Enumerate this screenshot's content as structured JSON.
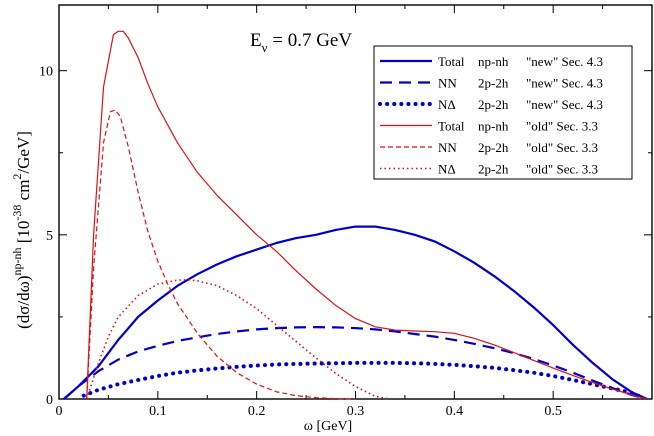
{
  "chart_data": {
    "type": "line",
    "title": "E",
    "title_sub": "ν",
    "title_rest": " = 0.7 GeV",
    "xlabel": "ω [GeV]",
    "ylabel_parts": {
      "main": "(dσ/dω)",
      "sup": "np-nh",
      "bracket_open": " [10",
      "exp": "-38",
      "unit": " cm",
      "unit_exp": "2",
      "tail": "/GeV]"
    },
    "xlim": [
      0,
      0.6
    ],
    "ylim": [
      0,
      12
    ],
    "xticks": [
      0,
      0.1,
      0.2,
      0.3,
      0.4,
      0.5
    ],
    "xtick_labels": [
      "0",
      "0.1",
      "0.2",
      "0.3",
      "0.4",
      "0.5"
    ],
    "yticks": [
      0,
      5,
      10
    ],
    "ytick_labels": [
      "0",
      "5",
      "10"
    ],
    "legend_position": "top-right",
    "series": [
      {
        "name": "Total np-nh \"new\" Sec. 4.3",
        "label_a": "Total",
        "label_b": "np-nh",
        "label_c": "\"new\" Sec. 4.3",
        "color": "#0000cc",
        "style": "solid",
        "width": 2.2,
        "x": [
          0.005,
          0.02,
          0.04,
          0.06,
          0.08,
          0.1,
          0.12,
          0.14,
          0.16,
          0.18,
          0.2,
          0.22,
          0.24,
          0.26,
          0.28,
          0.3,
          0.32,
          0.34,
          0.36,
          0.38,
          0.4,
          0.42,
          0.44,
          0.46,
          0.48,
          0.5,
          0.52,
          0.54,
          0.56,
          0.58,
          0.595
        ],
        "y": [
          0.0,
          0.4,
          1.0,
          1.8,
          2.5,
          3.0,
          3.45,
          3.8,
          4.1,
          4.35,
          4.55,
          4.75,
          4.9,
          5.0,
          5.15,
          5.25,
          5.25,
          5.15,
          5.0,
          4.8,
          4.5,
          4.15,
          3.75,
          3.3,
          2.8,
          2.25,
          1.65,
          1.1,
          0.6,
          0.2,
          0.0
        ]
      },
      {
        "name": "NN 2p-2h \"new\" Sec. 4.3",
        "label_a": "NN",
        "label_b": "2p-2h",
        "label_c": "\"new\" Sec. 4.3",
        "color": "#0000cc",
        "style": "dashed",
        "width": 2.2,
        "x": [
          0.005,
          0.02,
          0.04,
          0.06,
          0.08,
          0.1,
          0.12,
          0.14,
          0.16,
          0.18,
          0.2,
          0.22,
          0.24,
          0.26,
          0.28,
          0.3,
          0.32,
          0.34,
          0.36,
          0.38,
          0.4,
          0.42,
          0.44,
          0.46,
          0.48,
          0.5,
          0.52,
          0.54,
          0.56,
          0.58,
          0.595
        ],
        "y": [
          0.0,
          0.4,
          0.85,
          1.2,
          1.45,
          1.62,
          1.77,
          1.88,
          1.98,
          2.06,
          2.12,
          2.16,
          2.18,
          2.19,
          2.18,
          2.16,
          2.12,
          2.06,
          1.98,
          1.9,
          1.8,
          1.68,
          1.55,
          1.4,
          1.22,
          1.02,
          0.8,
          0.56,
          0.33,
          0.12,
          0.0
        ]
      },
      {
        "name": "NΔ 2p-2h \"new\" Sec. 4.3",
        "label_a": "NΔ",
        "label_b": "2p-2h",
        "label_c": "\"new\" Sec. 4.3",
        "color": "#0000cc",
        "style": "dotted",
        "width": 4,
        "x": [
          0.025,
          0.04,
          0.06,
          0.08,
          0.1,
          0.12,
          0.14,
          0.16,
          0.18,
          0.2,
          0.22,
          0.24,
          0.26,
          0.28,
          0.3,
          0.32,
          0.34,
          0.36,
          0.38,
          0.4,
          0.42,
          0.44,
          0.46,
          0.48,
          0.5,
          0.52,
          0.54,
          0.56,
          0.58,
          0.59
        ],
        "y": [
          0.1,
          0.28,
          0.45,
          0.58,
          0.7,
          0.8,
          0.87,
          0.93,
          0.98,
          1.02,
          1.05,
          1.07,
          1.08,
          1.09,
          1.1,
          1.1,
          1.1,
          1.09,
          1.07,
          1.04,
          1.0,
          0.95,
          0.88,
          0.8,
          0.7,
          0.58,
          0.45,
          0.32,
          0.18,
          0.05
        ]
      },
      {
        "name": "Total np-nh \"old\" Sec. 3.3",
        "label_a": "Total",
        "label_b": "np-nh",
        "label_c": "\"old\" Sec. 3.3",
        "color": "#dd1111",
        "style": "solid",
        "width": 1.2,
        "x": [
          0.028,
          0.035,
          0.045,
          0.055,
          0.06,
          0.065,
          0.07,
          0.08,
          0.09,
          0.1,
          0.12,
          0.14,
          0.16,
          0.18,
          0.2,
          0.22,
          0.24,
          0.26,
          0.28,
          0.3,
          0.32,
          0.34,
          0.36,
          0.38,
          0.4,
          0.42,
          0.44,
          0.46,
          0.48,
          0.5,
          0.52,
          0.54,
          0.56,
          0.58,
          0.595
        ],
        "y": [
          0.0,
          5.0,
          9.5,
          11.1,
          11.2,
          11.2,
          11.0,
          10.4,
          9.6,
          8.9,
          7.8,
          6.9,
          6.2,
          5.6,
          5.0,
          4.5,
          3.9,
          3.35,
          2.85,
          2.45,
          2.2,
          2.1,
          2.07,
          2.05,
          2.0,
          1.85,
          1.65,
          1.42,
          1.18,
          0.94,
          0.72,
          0.5,
          0.3,
          0.12,
          0.0
        ]
      },
      {
        "name": "NN 2p-2h \"old\" Sec. 3.3",
        "label_a": "NN",
        "label_b": "2p-2h",
        "label_c": "\"old\" Sec. 3.3",
        "color": "#dd1111",
        "style": "dashed",
        "width": 1.2,
        "x": [
          0.028,
          0.035,
          0.045,
          0.052,
          0.057,
          0.062,
          0.07,
          0.08,
          0.09,
          0.1,
          0.11,
          0.12,
          0.14,
          0.16,
          0.18,
          0.2,
          0.22,
          0.24,
          0.26,
          0.28,
          0.3
        ],
        "y": [
          0.0,
          4.0,
          7.8,
          8.75,
          8.8,
          8.6,
          7.7,
          6.3,
          5.1,
          4.2,
          3.5,
          2.9,
          2.0,
          1.3,
          0.8,
          0.45,
          0.22,
          0.1,
          0.04,
          0.01,
          0.0
        ]
      },
      {
        "name": "NΔ 2p-2h \"old\" Sec. 3.3",
        "label_a": "NΔ",
        "label_b": "2p-2h",
        "label_c": "\"old\" Sec. 3.3",
        "color": "#dd1111",
        "style": "dotted",
        "width": 1.6,
        "x": [
          0.028,
          0.04,
          0.05,
          0.06,
          0.08,
          0.1,
          0.12,
          0.13,
          0.14,
          0.16,
          0.18,
          0.2,
          0.22,
          0.24,
          0.26,
          0.28,
          0.3,
          0.32,
          0.335
        ],
        "y": [
          0.0,
          1.1,
          1.9,
          2.5,
          3.15,
          3.5,
          3.62,
          3.63,
          3.6,
          3.45,
          3.15,
          2.75,
          2.25,
          1.75,
          1.25,
          0.78,
          0.38,
          0.08,
          0.0
        ]
      }
    ]
  }
}
